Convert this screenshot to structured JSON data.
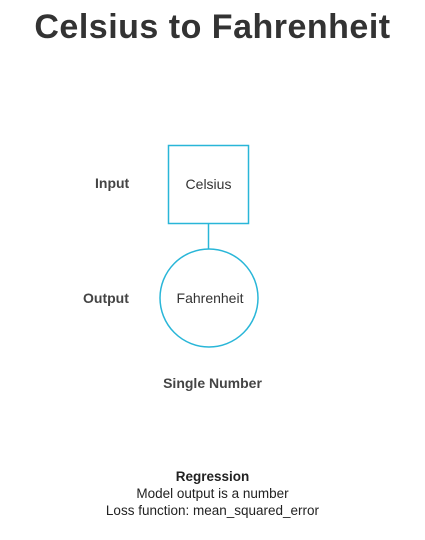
{
  "title": "Celsius to Fahrenheit",
  "diagram": {
    "input_label": "Input",
    "output_label": "Output",
    "input_node": "Celsius",
    "output_node": "Fahrenheit",
    "output_type": "Single Number",
    "stroke_color": "#29b6d8"
  },
  "footer": {
    "heading": "Regression",
    "line1": "Model output is a number",
    "line2": "Loss function: mean_squared_error"
  }
}
